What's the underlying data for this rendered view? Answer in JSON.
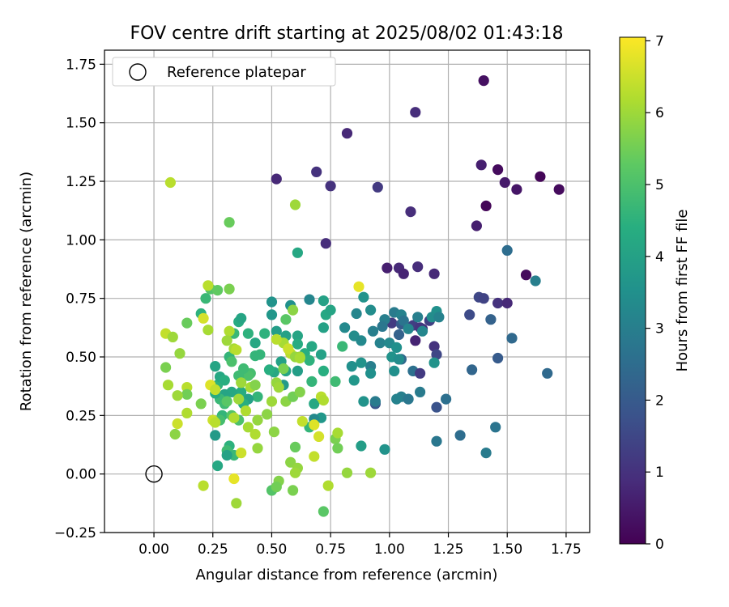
{
  "chart_data": {
    "type": "scatter",
    "title": "FOV centre drift starting at 2025/08/02 01:43:18",
    "xlabel": "Angular distance from reference (arcmin)",
    "ylabel": "Rotation from reference (arcmin)",
    "xlim": [
      -0.21,
      1.85
    ],
    "ylim": [
      -0.25,
      1.81
    ],
    "xticks": [
      0.0,
      0.25,
      0.5,
      0.75,
      1.0,
      1.25,
      1.5,
      1.75
    ],
    "xtick_labels": [
      "0.00",
      "0.25",
      "0.50",
      "0.75",
      "1.00",
      "1.25",
      "1.50",
      "1.75"
    ],
    "yticks": [
      -0.25,
      0.0,
      0.25,
      0.5,
      0.75,
      1.0,
      1.25,
      1.5,
      1.75
    ],
    "ytick_labels": [
      "−0.25",
      "0.00",
      "0.25",
      "0.50",
      "0.75",
      "1.00",
      "1.25",
      "1.50",
      "1.75"
    ],
    "grid": true,
    "legend": {
      "position": "top-left",
      "label": "Reference platepar"
    },
    "reference_point": {
      "x": 0.0,
      "y": 0.0
    },
    "colorbar": {
      "label": "Hours from first FF file",
      "colormap": "viridis",
      "range": [
        0,
        7.05
      ],
      "ticks": [
        0,
        1,
        2,
        3,
        4,
        5,
        6,
        7
      ],
      "tick_labels": [
        "0",
        "1",
        "2",
        "3",
        "4",
        "5",
        "6",
        "7"
      ]
    },
    "points": [
      [
        1.4,
        1.68,
        0.3
      ],
      [
        1.11,
        1.545,
        0.9
      ],
      [
        0.82,
        1.455,
        0.8
      ],
      [
        1.39,
        1.32,
        0.6
      ],
      [
        1.46,
        1.3,
        0.2
      ],
      [
        1.49,
        1.245,
        0.5
      ],
      [
        1.54,
        1.215,
        0.4
      ],
      [
        1.64,
        1.27,
        0.1
      ],
      [
        1.72,
        1.215,
        0.2
      ],
      [
        1.41,
        1.145,
        0.1
      ],
      [
        0.95,
        1.225,
        1.2
      ],
      [
        0.69,
        1.29,
        1.0
      ],
      [
        0.75,
        1.23,
        1.0
      ],
      [
        0.52,
        1.26,
        0.8
      ],
      [
        1.09,
        1.12,
        0.9
      ],
      [
        1.37,
        1.06,
        0.6
      ],
      [
        0.73,
        0.985,
        0.9
      ],
      [
        1.5,
        0.955,
        2.5
      ],
      [
        1.58,
        0.85,
        0.2
      ],
      [
        1.62,
        0.825,
        3.0
      ],
      [
        0.99,
        0.88,
        0.6
      ],
      [
        1.04,
        0.88,
        0.8
      ],
      [
        1.12,
        0.885,
        0.9
      ],
      [
        1.06,
        0.855,
        0.7
      ],
      [
        1.19,
        0.855,
        0.8
      ],
      [
        1.38,
        0.755,
        1.5
      ],
      [
        1.4,
        0.75,
        1.4
      ],
      [
        1.46,
        0.73,
        1.0
      ],
      [
        1.5,
        0.73,
        0.8
      ],
      [
        1.34,
        0.68,
        1.6
      ],
      [
        1.01,
        0.645,
        1.2
      ],
      [
        1.1,
        0.635,
        1.3
      ],
      [
        1.14,
        0.62,
        0.9
      ],
      [
        1.17,
        0.655,
        1.3
      ],
      [
        1.11,
        0.57,
        0.7
      ],
      [
        1.13,
        0.625,
        1.1
      ],
      [
        1.19,
        0.545,
        1.0
      ],
      [
        1.2,
        0.51,
        1.5
      ],
      [
        1.05,
        0.64,
        2.0
      ],
      [
        1.04,
        0.595,
        2.2
      ],
      [
        1.05,
        0.49,
        2.4
      ],
      [
        1.1,
        0.44,
        2.6
      ],
      [
        1.13,
        0.43,
        1.2
      ],
      [
        1.43,
        0.66,
        2.2
      ],
      [
        1.52,
        0.58,
        2.4
      ],
      [
        1.46,
        0.495,
        2.0
      ],
      [
        1.35,
        0.445,
        2.3
      ],
      [
        1.67,
        0.43,
        2.4
      ],
      [
        1.24,
        0.32,
        2.6
      ],
      [
        1.13,
        0.35,
        2.9
      ],
      [
        1.05,
        0.33,
        3.0
      ],
      [
        1.08,
        0.32,
        2.8
      ],
      [
        1.03,
        0.32,
        3.1
      ],
      [
        1.2,
        0.285,
        1.8
      ],
      [
        0.94,
        0.3,
        1.9
      ],
      [
        1.2,
        0.14,
        2.8
      ],
      [
        1.3,
        0.165,
        2.5
      ],
      [
        1.45,
        0.2,
        2.7
      ],
      [
        1.41,
        0.09,
        2.9
      ],
      [
        0.98,
        0.105,
        3.6
      ],
      [
        0.88,
        0.12,
        3.9
      ],
      [
        1.02,
        0.69,
        2.9
      ],
      [
        1.05,
        0.68,
        3.1
      ],
      [
        1.12,
        0.67,
        3.0
      ],
      [
        1.14,
        0.61,
        3.2
      ],
      [
        1.06,
        0.655,
        2.7
      ],
      [
        1.08,
        0.62,
        3.2
      ],
      [
        1.2,
        0.695,
        3.5
      ],
      [
        1.18,
        0.67,
        3.4
      ],
      [
        1.21,
        0.67,
        3.1
      ],
      [
        0.98,
        0.66,
        3.0
      ],
      [
        0.97,
        0.63,
        2.8
      ],
      [
        0.96,
        0.56,
        3.1
      ],
      [
        1.0,
        0.56,
        3.3
      ],
      [
        1.03,
        0.54,
        3.5
      ],
      [
        1.01,
        0.5,
        3.6
      ],
      [
        1.04,
        0.49,
        3.4
      ],
      [
        1.02,
        0.44,
        3.5
      ],
      [
        1.19,
        0.475,
        3.6
      ],
      [
        0.93,
        0.61,
        3.0
      ],
      [
        0.92,
        0.7,
        3.4
      ],
      [
        0.86,
        0.685,
        3.2
      ],
      [
        0.89,
        0.755,
        3.6
      ],
      [
        0.81,
        0.625,
        3.3
      ],
      [
        0.85,
        0.59,
        3.4
      ],
      [
        0.88,
        0.57,
        3.3
      ],
      [
        0.92,
        0.46,
        3.0
      ],
      [
        0.92,
        0.43,
        3.5
      ],
      [
        0.84,
        0.46,
        3.5
      ],
      [
        0.88,
        0.475,
        3.6
      ],
      [
        0.85,
        0.4,
        3.7
      ],
      [
        0.89,
        0.31,
        3.6
      ],
      [
        0.94,
        0.31,
        2.9
      ],
      [
        0.72,
        0.74,
        4.0
      ],
      [
        0.73,
        0.68,
        4.2
      ],
      [
        0.75,
        0.7,
        4.1
      ],
      [
        0.72,
        0.625,
        4.0
      ],
      [
        0.66,
        0.745,
        3.2
      ],
      [
        0.58,
        0.72,
        3.5
      ],
      [
        0.5,
        0.735,
        3.6
      ],
      [
        0.5,
        0.68,
        3.7
      ],
      [
        0.52,
        0.61,
        3.9
      ],
      [
        0.56,
        0.59,
        4.0
      ],
      [
        0.61,
        0.59,
        4.1
      ],
      [
        0.61,
        0.555,
        4.3
      ],
      [
        0.64,
        0.515,
        4.4
      ],
      [
        0.67,
        0.545,
        4.2
      ],
      [
        0.71,
        0.51,
        4.0
      ],
      [
        0.66,
        0.485,
        4.5
      ],
      [
        0.72,
        0.44,
        4.4
      ],
      [
        0.67,
        0.395,
        4.6
      ],
      [
        0.77,
        0.395,
        4.8
      ],
      [
        0.8,
        0.545,
        4.7
      ],
      [
        0.68,
        0.3,
        4.2
      ],
      [
        0.71,
        0.24,
        3.7
      ],
      [
        0.66,
        0.2,
        4.6
      ],
      [
        0.68,
        0.235,
        3.3
      ],
      [
        0.61,
        0.44,
        3.9
      ],
      [
        0.54,
        0.48,
        4.0
      ],
      [
        0.56,
        0.44,
        4.1
      ],
      [
        0.55,
        0.38,
        3.8
      ],
      [
        0.51,
        0.435,
        4.2
      ],
      [
        0.49,
        0.445,
        4.4
      ],
      [
        0.45,
        0.51,
        4.6
      ],
      [
        0.47,
        0.6,
        4.5
      ],
      [
        0.43,
        0.56,
        4.2
      ],
      [
        0.4,
        0.6,
        4.5
      ],
      [
        0.43,
        0.505,
        4.6
      ],
      [
        0.41,
        0.43,
        4.9
      ],
      [
        0.4,
        0.42,
        5.0
      ],
      [
        0.38,
        0.45,
        4.8
      ],
      [
        0.44,
        0.33,
        4.6
      ],
      [
        0.4,
        0.32,
        4.0
      ],
      [
        0.37,
        0.35,
        4.3
      ],
      [
        0.38,
        0.3,
        4.4
      ],
      [
        0.33,
        0.35,
        4.2
      ],
      [
        0.3,
        0.34,
        4.1
      ],
      [
        0.28,
        0.32,
        4.7
      ],
      [
        0.27,
        0.38,
        4.5
      ],
      [
        0.26,
        0.345,
        4.3
      ],
      [
        0.3,
        0.3,
        4.8
      ],
      [
        0.29,
        0.25,
        4.6
      ],
      [
        0.28,
        0.23,
        4.9
      ],
      [
        0.26,
        0.165,
        3.8
      ],
      [
        0.32,
        0.12,
        4.5
      ],
      [
        0.31,
        0.1,
        4.8
      ],
      [
        0.34,
        0.08,
        4.7
      ],
      [
        0.31,
        0.08,
        4.0
      ],
      [
        0.27,
        0.035,
        4.2
      ],
      [
        0.26,
        0.46,
        4.1
      ],
      [
        0.28,
        0.415,
        4.2
      ],
      [
        0.3,
        0.4,
        4.4
      ],
      [
        0.32,
        0.5,
        4.6
      ],
      [
        0.34,
        0.6,
        4.7
      ],
      [
        0.36,
        0.65,
        4.3
      ],
      [
        0.37,
        0.665,
        4.1
      ],
      [
        0.36,
        0.42,
        4.8
      ],
      [
        0.33,
        0.48,
        5.0
      ],
      [
        0.31,
        0.31,
        5.2
      ],
      [
        0.33,
        0.25,
        5.1
      ],
      [
        0.36,
        0.23,
        5.0
      ],
      [
        0.24,
        0.79,
        5.1
      ],
      [
        0.27,
        0.785,
        5.3
      ],
      [
        0.22,
        0.75,
        4.7
      ],
      [
        0.2,
        0.685,
        4.5
      ],
      [
        0.32,
        1.075,
        5.4
      ],
      [
        0.6,
        1.15,
        6.0
      ],
      [
        0.61,
        0.945,
        4.2
      ],
      [
        0.59,
        0.7,
        5.8
      ],
      [
        0.56,
        0.66,
        5.2
      ],
      [
        0.55,
        0.56,
        6.1
      ],
      [
        0.58,
        0.515,
        6.3
      ],
      [
        0.57,
        0.535,
        6.5
      ],
      [
        0.6,
        0.5,
        5.9
      ],
      [
        0.62,
        0.5,
        6.0
      ],
      [
        0.55,
        0.45,
        5.6
      ],
      [
        0.52,
        0.39,
        5.9
      ],
      [
        0.53,
        0.37,
        6.0
      ],
      [
        0.56,
        0.31,
        5.8
      ],
      [
        0.59,
        0.33,
        5.5
      ],
      [
        0.62,
        0.35,
        5.7
      ],
      [
        0.71,
        0.33,
        6.3
      ],
      [
        0.7,
        0.16,
        6.6
      ],
      [
        0.68,
        0.21,
        6.7
      ],
      [
        0.68,
        0.075,
        6.4
      ],
      [
        0.77,
        0.15,
        5.6
      ],
      [
        0.78,
        0.175,
        6.1
      ],
      [
        0.78,
        0.11,
        5.5
      ],
      [
        0.82,
        0.005,
        5.9
      ],
      [
        0.92,
        0.005,
        6.0
      ],
      [
        0.6,
        0.115,
        5.4
      ],
      [
        0.58,
        0.05,
        5.8
      ],
      [
        0.61,
        0.025,
        5.9
      ],
      [
        0.6,
        0.005,
        6.0
      ],
      [
        0.53,
        -0.03,
        5.7
      ],
      [
        0.5,
        -0.07,
        5.1
      ],
      [
        0.52,
        -0.055,
        5.5
      ],
      [
        0.59,
        -0.07,
        5.6
      ],
      [
        0.72,
        -0.16,
        5.2
      ],
      [
        0.74,
        -0.05,
        6.2
      ],
      [
        0.35,
        -0.125,
        6.0
      ],
      [
        0.34,
        -0.02,
        6.8
      ],
      [
        0.21,
        -0.05,
        6.3
      ],
      [
        0.37,
        0.09,
        6.5
      ],
      [
        0.44,
        0.11,
        5.9
      ],
      [
        0.51,
        0.18,
        5.8
      ],
      [
        0.5,
        0.31,
        6.0
      ],
      [
        0.48,
        0.255,
        5.8
      ],
      [
        0.44,
        0.23,
        5.9
      ],
      [
        0.39,
        0.27,
        6.2
      ],
      [
        0.4,
        0.2,
        6.1
      ],
      [
        0.34,
        0.24,
        6.2
      ],
      [
        0.36,
        0.32,
        6.0
      ],
      [
        0.25,
        0.23,
        6.5
      ],
      [
        0.26,
        0.22,
        6.3
      ],
      [
        0.24,
        0.38,
        6.7
      ],
      [
        0.26,
        0.36,
        6.4
      ],
      [
        0.2,
        0.3,
        5.6
      ],
      [
        0.14,
        0.37,
        6.3
      ],
      [
        0.14,
        0.34,
        5.5
      ],
      [
        0.14,
        0.26,
        6.2
      ],
      [
        0.1,
        0.215,
        6.5
      ],
      [
        0.09,
        0.17,
        5.8
      ],
      [
        0.1,
        0.335,
        6.0
      ],
      [
        0.06,
        0.38,
        6.1
      ],
      [
        0.05,
        0.455,
        5.6
      ],
      [
        0.11,
        0.515,
        5.9
      ],
      [
        0.05,
        0.6,
        6.4
      ],
      [
        0.08,
        0.585,
        6.0
      ],
      [
        0.14,
        0.645,
        5.4
      ],
      [
        0.21,
        0.665,
        6.6
      ],
      [
        0.23,
        0.615,
        6.1
      ],
      [
        0.23,
        0.805,
        6.3
      ],
      [
        0.32,
        0.79,
        5.6
      ],
      [
        0.32,
        0.61,
        6.2
      ],
      [
        0.31,
        0.57,
        6.0
      ],
      [
        0.34,
        0.535,
        6.1
      ],
      [
        0.35,
        0.53,
        6.3
      ],
      [
        0.37,
        0.39,
        6.0
      ],
      [
        0.41,
        0.37,
        6.1
      ],
      [
        0.43,
        0.38,
        5.7
      ],
      [
        0.43,
        0.17,
        6.2
      ],
      [
        0.63,
        0.225,
        6.4
      ],
      [
        0.87,
        0.8,
        6.8
      ],
      [
        0.07,
        1.245,
        6.3
      ],
      [
        0.72,
        0.315,
        6.2
      ],
      [
        0.52,
        0.575,
        6.3
      ],
      [
        0.62,
        0.495,
        6.1
      ]
    ]
  }
}
